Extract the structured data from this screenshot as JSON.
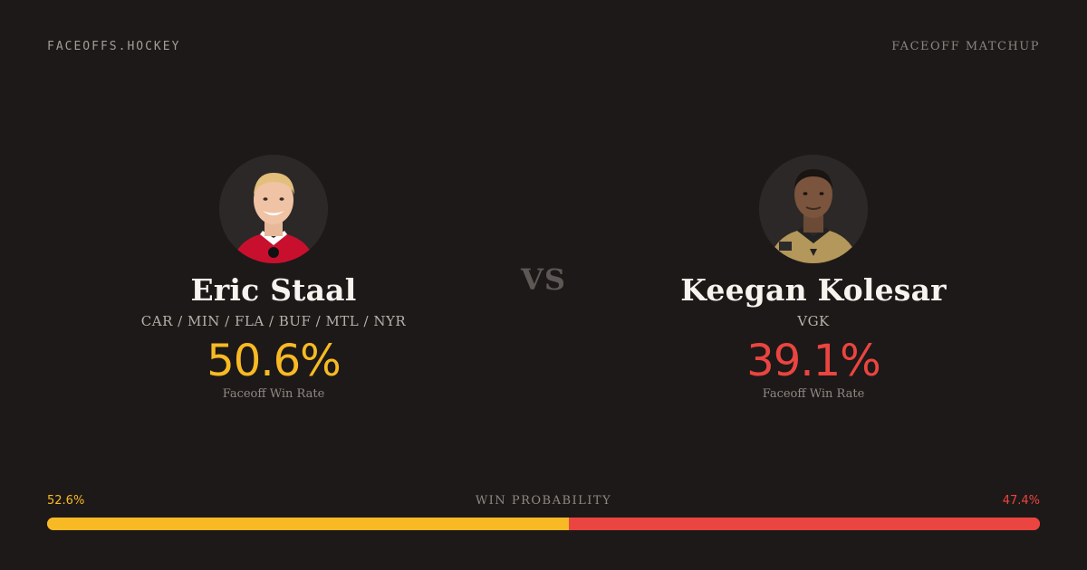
{
  "header": {
    "brand": "FACEOFFS.HOCKEY",
    "tag": "FACEOFF MATCHUP"
  },
  "vs_label": "VS",
  "players": [
    {
      "name": "Eric Staal",
      "teams": "CAR / MIN / FLA / BUF / MTL / NYR",
      "rate": "50.6%",
      "rate_label": "Faceoff Win Rate",
      "accent": "#f8ba24",
      "jersey_color": "#c8102e"
    },
    {
      "name": "Keegan Kolesar",
      "teams": "VGK",
      "rate": "39.1%",
      "rate_label": "Faceoff Win Rate",
      "accent": "#ea4540",
      "jersey_color": "#b4975a"
    }
  ],
  "probability": {
    "label": "WIN PROBABILITY",
    "left": "52.6%",
    "right": "47.4%",
    "left_fraction": 0.526,
    "left_color": "#f8ba24",
    "right_color": "#ea4540"
  }
}
